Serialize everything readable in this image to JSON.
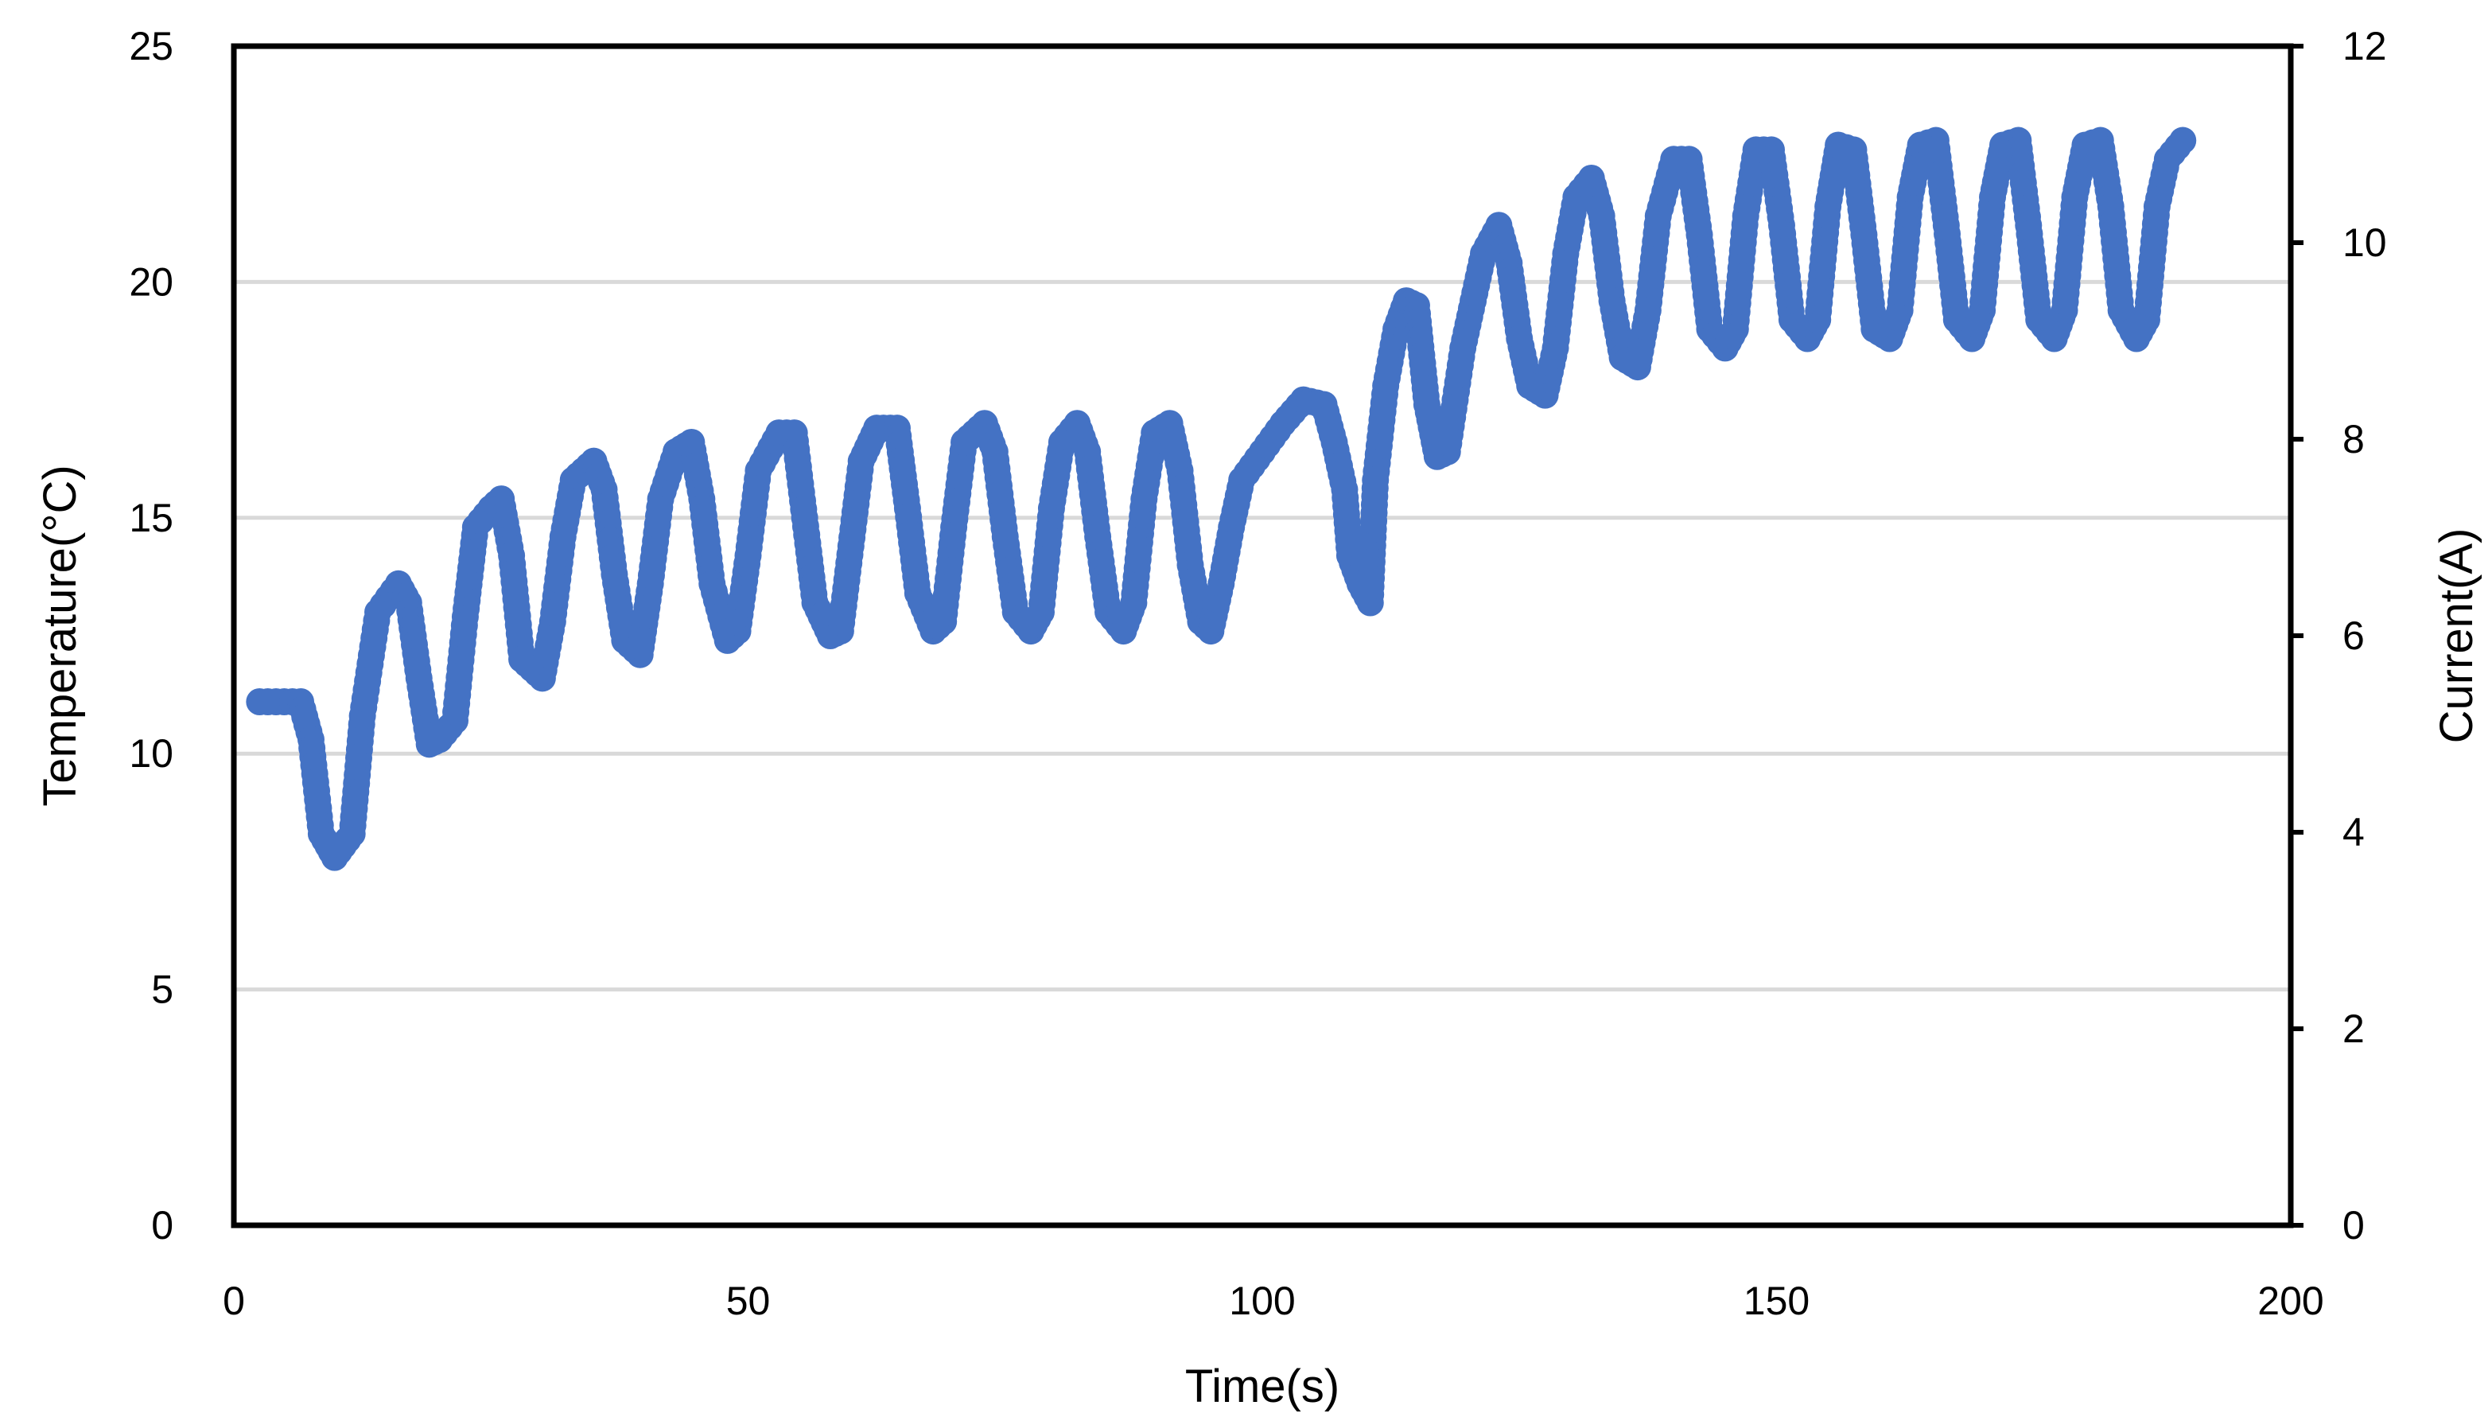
{
  "chart_data": {
    "type": "scatter",
    "title": "",
    "xlabel": "Time(s)",
    "ylabel": "Temperature(°C)",
    "y2label": "Current(A)",
    "xlim": [
      0,
      200
    ],
    "ylim": [
      0,
      25
    ],
    "y2lim": [
      0,
      12
    ],
    "x_ticks": [
      0,
      50,
      100,
      150,
      200
    ],
    "y_ticks": [
      0,
      5,
      10,
      15,
      20,
      25
    ],
    "y2_ticks": [
      0,
      2,
      4,
      6,
      8,
      10,
      12
    ],
    "grid": "horizontal",
    "legend": "none",
    "colors": {
      "series": "#4472C4",
      "grid": "#D9D9D9",
      "axis": "#000000"
    },
    "series": [
      {
        "axis": "left",
        "points": [
          [
            2.5,
            11.1
          ],
          [
            6.5,
            11.1
          ],
          [
            7.5,
            10.3
          ],
          [
            8.5,
            8.3
          ],
          [
            9.8,
            7.8
          ],
          [
            11.5,
            8.3
          ],
          [
            12.5,
            10.8
          ],
          [
            14,
            13.0
          ],
          [
            16,
            13.6
          ],
          [
            17,
            13.2
          ],
          [
            18,
            11.6
          ],
          [
            19,
            10.2
          ],
          [
            20,
            10.3
          ],
          [
            21.5,
            10.7
          ],
          [
            22.5,
            12.9
          ],
          [
            23.5,
            14.8
          ],
          [
            25,
            15.2
          ],
          [
            26,
            15.4
          ],
          [
            27,
            14.2
          ],
          [
            28,
            12.0
          ],
          [
            30,
            11.6
          ],
          [
            31,
            12.8
          ],
          [
            32,
            14.6
          ],
          [
            33,
            15.8
          ],
          [
            35,
            16.2
          ],
          [
            36,
            15.6
          ],
          [
            37,
            13.8
          ],
          [
            38,
            12.4
          ],
          [
            39.5,
            12.1
          ],
          [
            40.5,
            13.6
          ],
          [
            41.5,
            15.4
          ],
          [
            43,
            16.4
          ],
          [
            44.5,
            16.6
          ],
          [
            45.5,
            15.4
          ],
          [
            46.5,
            13.6
          ],
          [
            48,
            12.4
          ],
          [
            49,
            12.6
          ],
          [
            50,
            14.2
          ],
          [
            51,
            16.0
          ],
          [
            53,
            16.8
          ],
          [
            54.5,
            16.8
          ],
          [
            55.5,
            15.0
          ],
          [
            56.5,
            13.2
          ],
          [
            58,
            12.5
          ],
          [
            59,
            12.6
          ],
          [
            60,
            14.4
          ],
          [
            61,
            16.2
          ],
          [
            62.5,
            16.9
          ],
          [
            64.5,
            16.9
          ],
          [
            65.5,
            15.2
          ],
          [
            66.5,
            13.4
          ],
          [
            68,
            12.6
          ],
          [
            69,
            12.8
          ],
          [
            70,
            14.8
          ],
          [
            71,
            16.6
          ],
          [
            73,
            17.0
          ],
          [
            74,
            16.4
          ],
          [
            75,
            14.6
          ],
          [
            76,
            13.0
          ],
          [
            77.5,
            12.6
          ],
          [
            78.5,
            13.0
          ],
          [
            79.5,
            15.2
          ],
          [
            80.5,
            16.6
          ],
          [
            82,
            17.0
          ],
          [
            83,
            16.4
          ],
          [
            84,
            14.6
          ],
          [
            85,
            13.0
          ],
          [
            86.5,
            12.6
          ],
          [
            87.5,
            13.2
          ],
          [
            88.5,
            15.4
          ],
          [
            89.5,
            16.8
          ],
          [
            91,
            17.0
          ],
          [
            92,
            16.0
          ],
          [
            93,
            14.0
          ],
          [
            94,
            12.8
          ],
          [
            95,
            12.6
          ],
          [
            96,
            13.6
          ],
          [
            97,
            14.8
          ],
          [
            98,
            15.8
          ],
          [
            100,
            16.4
          ],
          [
            102,
            17.0
          ],
          [
            104,
            17.5
          ],
          [
            106,
            17.4
          ],
          [
            107,
            16.6
          ],
          [
            108,
            15.6
          ],
          [
            108.5,
            14.2
          ],
          [
            109.5,
            13.6
          ],
          [
            110.5,
            13.2
          ],
          [
            111,
            15.8
          ],
          [
            112,
            17.8
          ],
          [
            113,
            19.0
          ],
          [
            114,
            19.6
          ],
          [
            115,
            19.5
          ],
          [
            116,
            17.4
          ],
          [
            117,
            16.3
          ],
          [
            118,
            16.4
          ],
          [
            119.5,
            18.6
          ],
          [
            120.5,
            19.6
          ],
          [
            121.5,
            20.6
          ],
          [
            123,
            21.2
          ],
          [
            124,
            20.4
          ],
          [
            125,
            18.8
          ],
          [
            126,
            17.8
          ],
          [
            127.5,
            17.6
          ],
          [
            128.5,
            18.6
          ],
          [
            129.5,
            20.6
          ],
          [
            130.5,
            21.8
          ],
          [
            132,
            22.2
          ],
          [
            133,
            21.4
          ],
          [
            134,
            19.6
          ],
          [
            135,
            18.4
          ],
          [
            136.5,
            18.2
          ],
          [
            137.5,
            19.4
          ],
          [
            138.5,
            21.4
          ],
          [
            140,
            22.6
          ],
          [
            141.5,
            22.6
          ],
          [
            142.5,
            21.0
          ],
          [
            143.5,
            19.0
          ],
          [
            145,
            18.6
          ],
          [
            146,
            19.0
          ],
          [
            147,
            21.4
          ],
          [
            148,
            22.8
          ],
          [
            149.5,
            22.8
          ],
          [
            150.5,
            21.2
          ],
          [
            151.5,
            19.2
          ],
          [
            153,
            18.8
          ],
          [
            154,
            19.2
          ],
          [
            155,
            21.6
          ],
          [
            156,
            22.9
          ],
          [
            157.5,
            22.8
          ],
          [
            158.5,
            21.0
          ],
          [
            159.5,
            19.0
          ],
          [
            161,
            18.8
          ],
          [
            162,
            19.4
          ],
          [
            163,
            21.8
          ],
          [
            164,
            22.9
          ],
          [
            165.5,
            23.0
          ],
          [
            166.5,
            21.2
          ],
          [
            167.5,
            19.2
          ],
          [
            169,
            18.8
          ],
          [
            170,
            19.4
          ],
          [
            171,
            21.8
          ],
          [
            172,
            22.9
          ],
          [
            173.5,
            23.0
          ],
          [
            174.5,
            21.2
          ],
          [
            175.5,
            19.2
          ],
          [
            177,
            18.8
          ],
          [
            178,
            19.4
          ],
          [
            179,
            21.8
          ],
          [
            180,
            22.9
          ],
          [
            181.5,
            23.0
          ],
          [
            182.5,
            21.6
          ],
          [
            183.5,
            19.4
          ],
          [
            185,
            18.8
          ],
          [
            186,
            19.2
          ],
          [
            187,
            21.6
          ],
          [
            188,
            22.6
          ],
          [
            189.5,
            23.0
          ]
        ]
      }
    ]
  }
}
